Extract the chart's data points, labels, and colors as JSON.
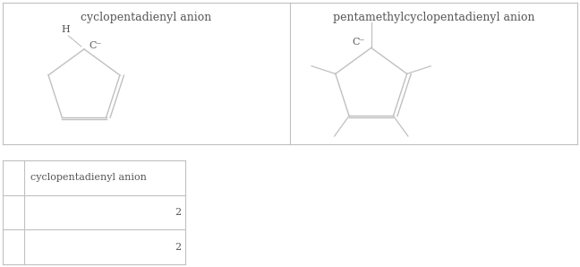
{
  "bg_color": "#ffffff",
  "line_color": "#c0c0c0",
  "text_color": "#555555",
  "title_row": [
    "cyclopentadienyl anion",
    "pentamethylcyclopentadienyl anion"
  ],
  "table_header": "cyclopentadienyl anion",
  "table_values": [
    "2",
    "2"
  ],
  "fig_w": 6.48,
  "fig_h": 2.98
}
